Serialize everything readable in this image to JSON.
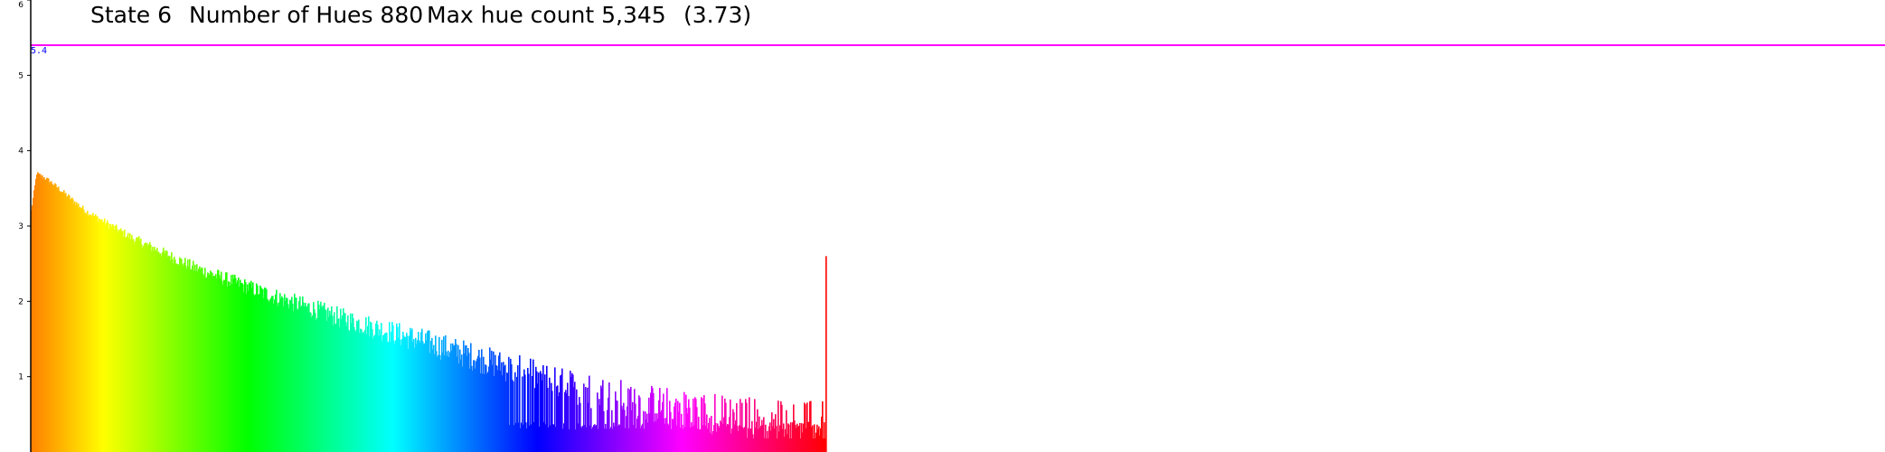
{
  "chart_data": {
    "type": "bar",
    "title_parts": [
      "State 6",
      "Number of Hues 880",
      "Max hue count 5,345",
      "(3.73)"
    ],
    "y_ticks": [
      "1",
      "2",
      "3",
      "4",
      "5",
      "6"
    ],
    "ylim": [
      0,
      6
    ],
    "reference_line": {
      "value": 5.4,
      "label": "5.4",
      "color": "#ff00ff",
      "label_color": "#0000ff"
    },
    "axis_color": "#000000",
    "grid": false,
    "legend": "none",
    "color_mapping": "hue spectrum (orange → yellow → green → cyan → blue → purple → magenta → red)",
    "num_bins": 880,
    "values_approx_keypoints": [
      {
        "bin": 0,
        "value": 3.2
      },
      {
        "bin": 6,
        "value": 3.7
      },
      {
        "bin": 20,
        "value": 3.6
      },
      {
        "bin": 60,
        "value": 3.2
      },
      {
        "bin": 110,
        "value": 2.85
      },
      {
        "bin": 180,
        "value": 2.45
      },
      {
        "bin": 260,
        "value": 2.1
      },
      {
        "bin": 350,
        "value": 1.75
      },
      {
        "bin": 440,
        "value": 1.45
      },
      {
        "bin": 520,
        "value": 1.15
      },
      {
        "bin": 600,
        "value": 0.85
      },
      {
        "bin": 680,
        "value": 0.65
      },
      {
        "bin": 760,
        "value": 0.5
      },
      {
        "bin": 830,
        "value": 0.42
      },
      {
        "bin": 879,
        "value": 0.35
      }
    ],
    "baseline_floor": 0.3,
    "spike": {
      "bin": 879,
      "value": 2.6,
      "color": "#ff0000"
    }
  }
}
